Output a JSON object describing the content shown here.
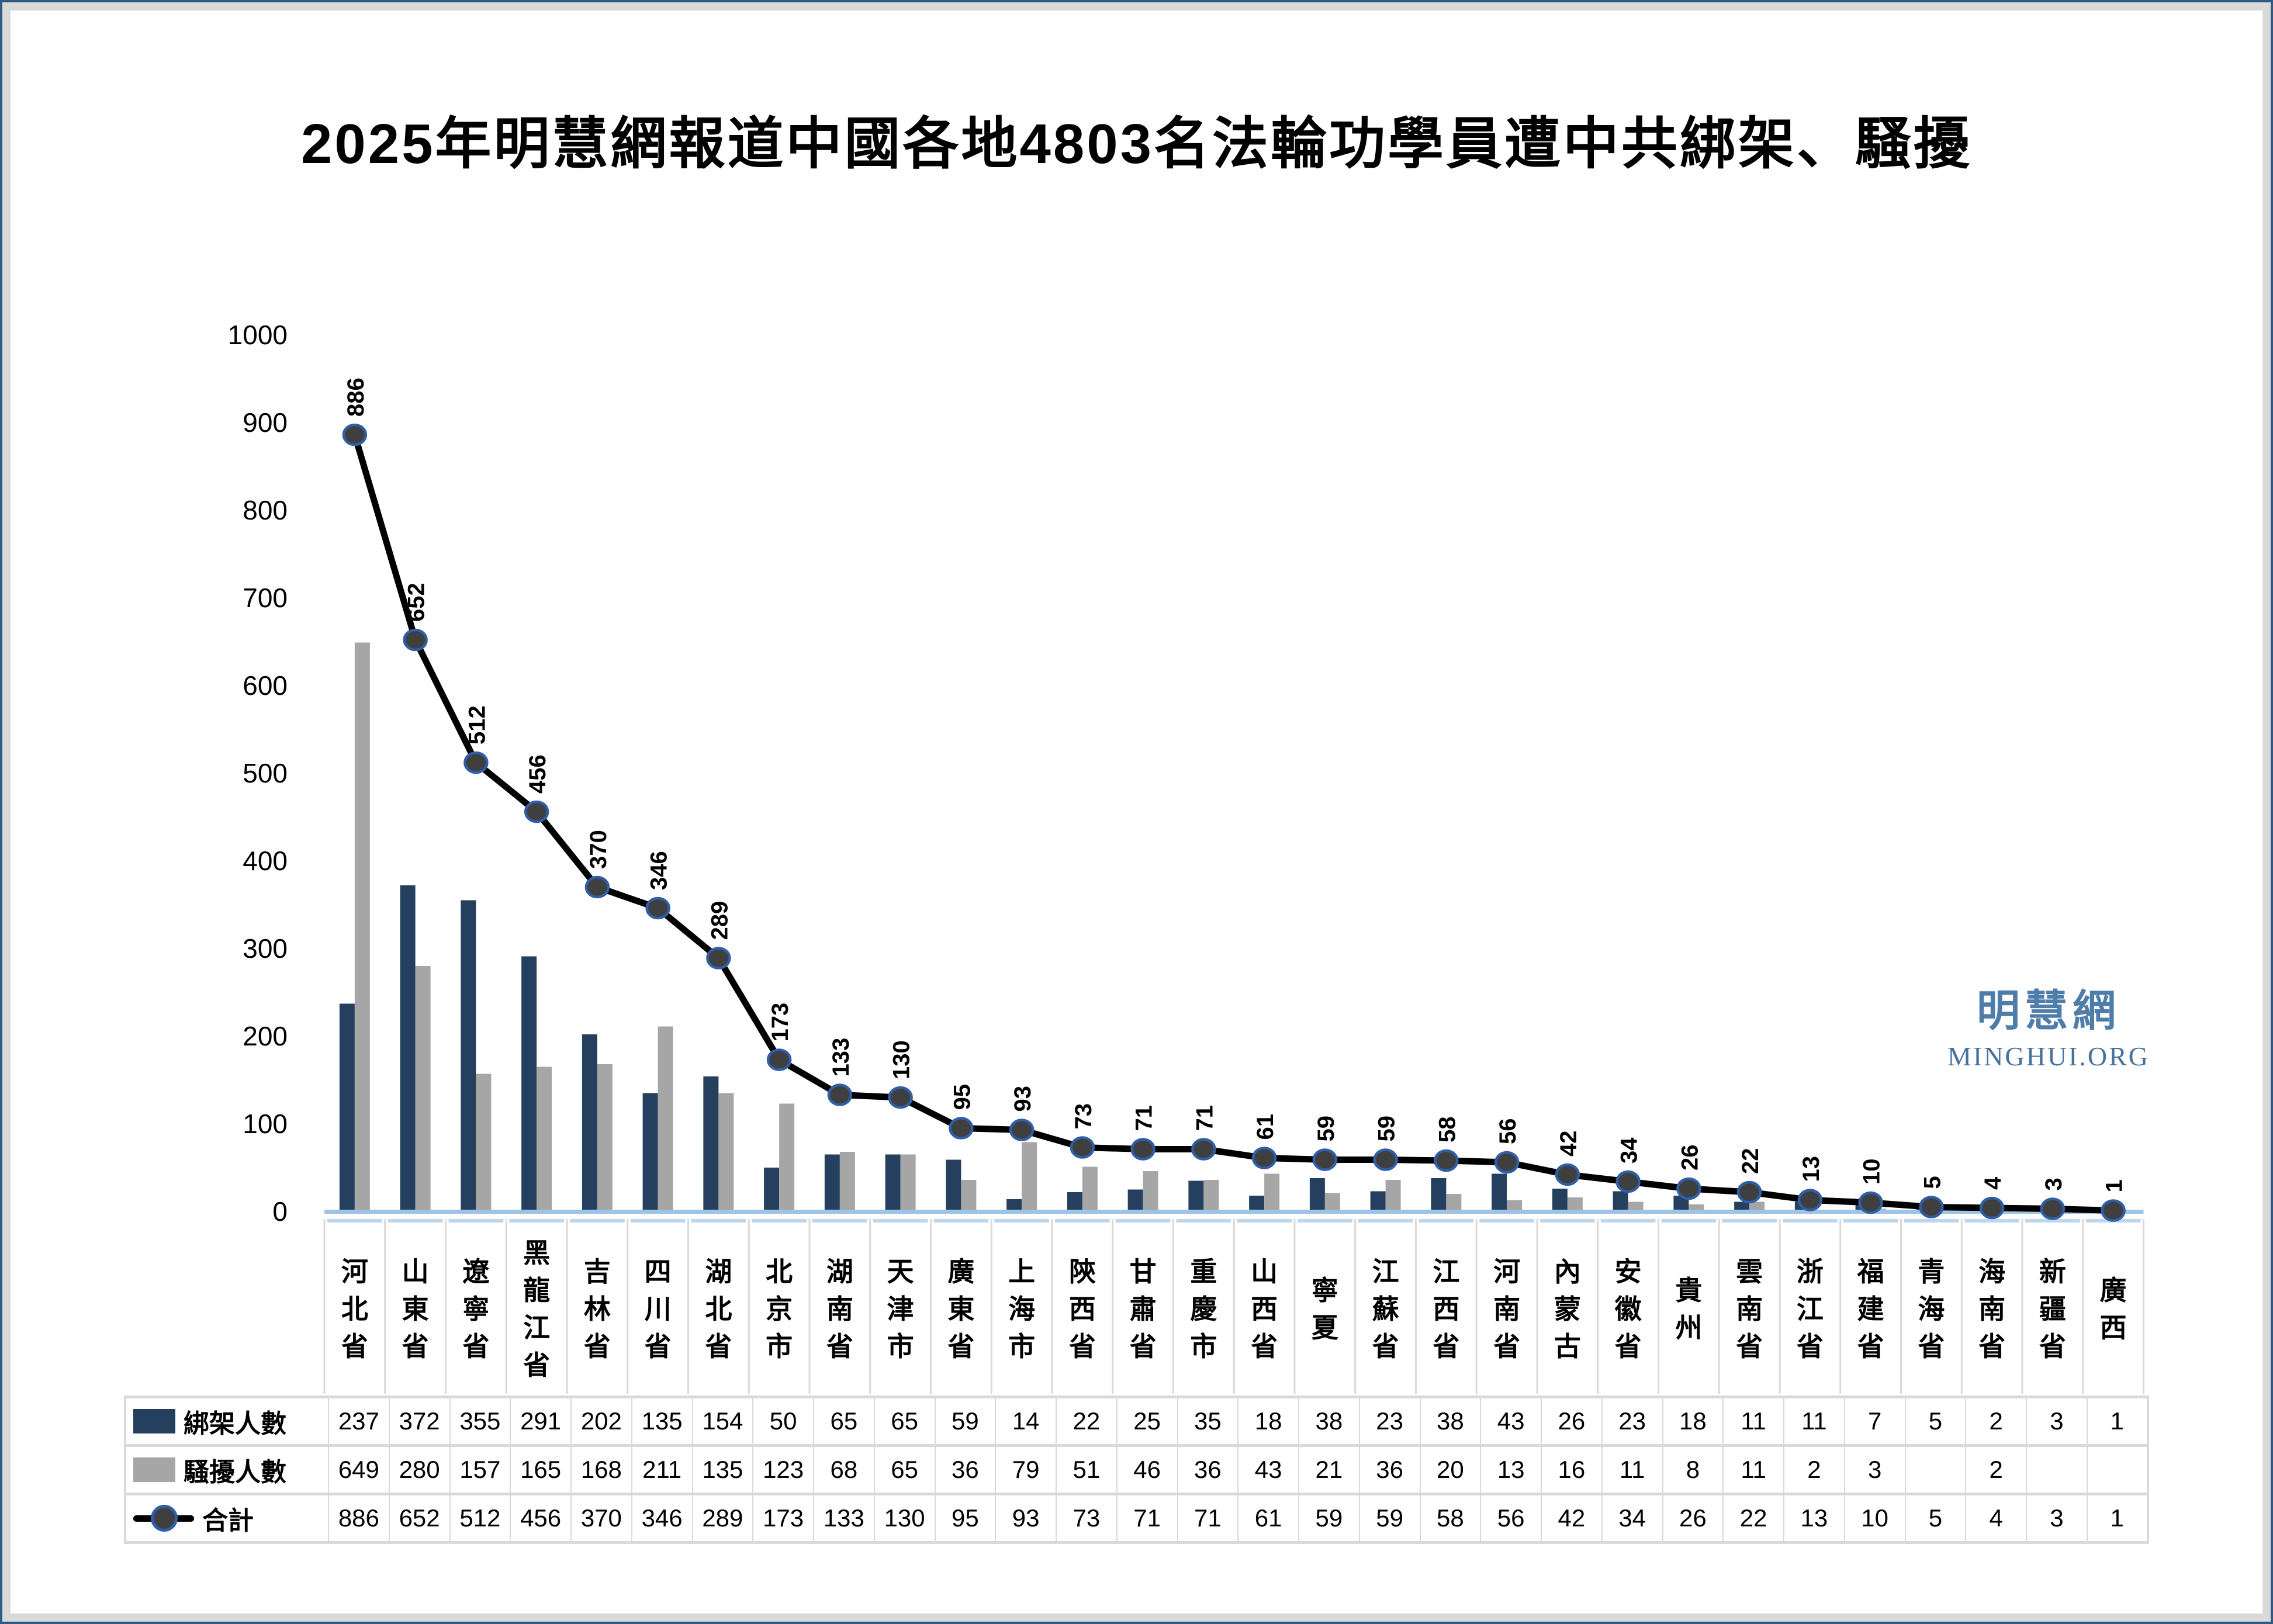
{
  "title": "2025年明慧網報道中國各地4803名法輪功學員遭中共綁架、騷擾",
  "watermark": {
    "cjk": "明慧網",
    "latin": "MINGHUI.ORG"
  },
  "colors": {
    "kidnapped_bar": "#24405E",
    "harassed_bar": "#A6A6A6",
    "total_line": "#000000",
    "marker_fill": "#3F3F3F",
    "marker_stroke": "#2F5FA8",
    "axis_line": "#9DC3E6",
    "cell_top_line": "#BDD7EE",
    "table_border": "#D9D9D9",
    "watermark_text": "#4F7DA9",
    "frame_border": "#2E5A84",
    "frame_band": "#D9D9D9"
  },
  "chart_data": {
    "type": "bar",
    "combo": "two bar series + one line series with markers and rotated data labels",
    "title": "2025年明慧網報道中國各地4803名法輪功學員遭中共綁架、騷擾",
    "xlabel": "",
    "ylabel": "",
    "ylim": [
      0,
      1000
    ],
    "ytick_step": 100,
    "yticks": [
      0,
      100,
      200,
      300,
      400,
      500,
      600,
      700,
      800,
      900,
      1000
    ],
    "grid": false,
    "legend_position": "table-left",
    "total_reported": 4803,
    "categories": [
      "河北省",
      "山東省",
      "遼寧省",
      "黑龍江省",
      "吉林省",
      "四川省",
      "湖北省",
      "北京市",
      "湖南省",
      "天津市",
      "廣東省",
      "上海市",
      "陝西省",
      "甘肅省",
      "重慶市",
      "山西省",
      "寧夏",
      "江蘇省",
      "江西省",
      "河南省",
      "內蒙古",
      "安徽省",
      "貴州",
      "雲南省",
      "浙江省",
      "福建省",
      "青海省",
      "海南省",
      "新疆省",
      "廣西"
    ],
    "series": [
      {
        "key": "kidnapped",
        "name": "綁架人數",
        "type": "bar",
        "color": "#24405E",
        "values": [
          237,
          372,
          355,
          291,
          202,
          135,
          154,
          50,
          65,
          65,
          59,
          14,
          22,
          25,
          35,
          18,
          38,
          23,
          38,
          43,
          26,
          23,
          18,
          11,
          11,
          7,
          5,
          2,
          3,
          1
        ]
      },
      {
        "key": "harassed",
        "name": "騷擾人數",
        "type": "bar",
        "color": "#A6A6A6",
        "values": [
          649,
          280,
          157,
          165,
          168,
          211,
          135,
          123,
          68,
          65,
          36,
          79,
          51,
          46,
          36,
          43,
          21,
          36,
          20,
          13,
          16,
          11,
          8,
          11,
          2,
          3,
          null,
          2,
          null,
          null
        ]
      },
      {
        "key": "total",
        "name": "合計",
        "type": "line",
        "color": "#000000",
        "marker_fill": "#3F3F3F",
        "marker_stroke": "#2F5FA8",
        "data_labels": true,
        "label_rotation": -90,
        "values": [
          886,
          652,
          512,
          456,
          370,
          346,
          289,
          173,
          133,
          130,
          95,
          93,
          73,
          71,
          71,
          61,
          59,
          59,
          58,
          56,
          42,
          34,
          26,
          22,
          13,
          10,
          5,
          4,
          3,
          1
        ]
      }
    ]
  }
}
